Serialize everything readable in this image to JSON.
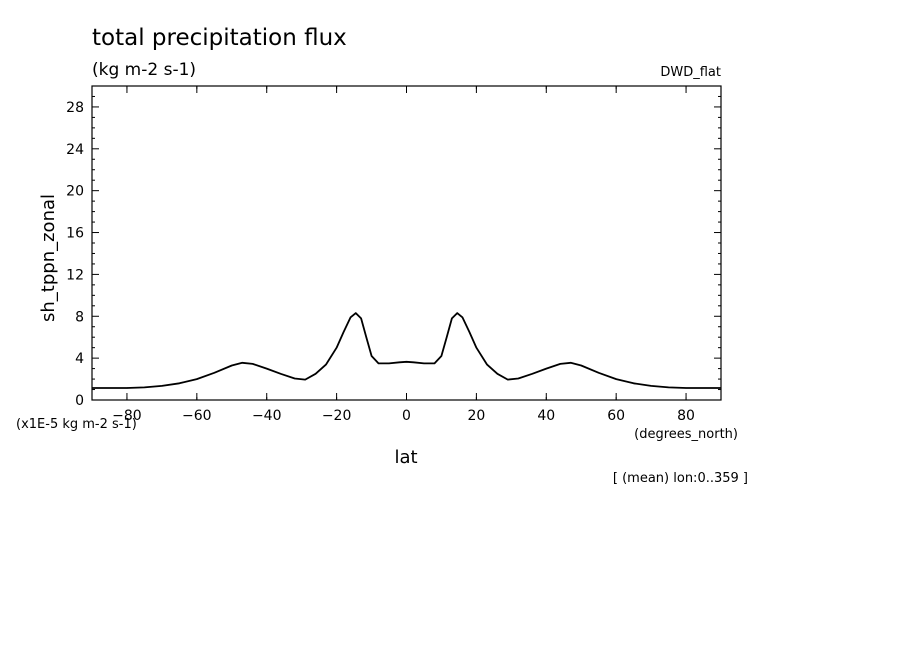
{
  "chart_data": {
    "type": "line",
    "title": "total precipitation flux",
    "units": "(kg m-2 s-1)",
    "model": "DWD_flat",
    "ylabel": "sh_tppn_zonal",
    "xlabel": "lat",
    "scale_note": "(x1E-5 kg m-2 s-1)",
    "x_units": "(degrees_north)",
    "footnote": "[ (mean) lon:0..359 ]",
    "xlim": [
      -90,
      90
    ],
    "ylim": [
      0,
      30
    ],
    "x_ticks": [
      -80,
      -60,
      -40,
      -20,
      0,
      20,
      40,
      60,
      80
    ],
    "y_ticks": [
      0,
      4,
      8,
      12,
      16,
      20,
      24,
      28
    ],
    "grid": false,
    "series": [
      {
        "x": [
          -90,
          -80,
          -75,
          -70,
          -65,
          -60,
          -55,
          -50,
          -47,
          -44,
          -40,
          -36,
          -32,
          -29,
          -26,
          -23,
          -20,
          -18,
          -16,
          -14.5,
          -13,
          -11.5,
          -10,
          -8,
          -5,
          -2,
          0,
          2,
          5,
          8,
          10,
          11.5,
          13,
          14.5,
          16,
          18,
          20,
          23,
          26,
          29,
          32,
          36,
          40,
          44,
          47,
          50,
          55,
          60,
          65,
          70,
          75,
          80,
          90
        ],
        "y": [
          1.15,
          1.15,
          1.2,
          1.35,
          1.6,
          2.0,
          2.6,
          3.3,
          3.55,
          3.45,
          3.0,
          2.5,
          2.05,
          1.95,
          2.5,
          3.4,
          5.0,
          6.5,
          7.9,
          8.3,
          7.8,
          6.0,
          4.2,
          3.5,
          3.5,
          3.6,
          3.65,
          3.6,
          3.5,
          3.5,
          4.2,
          6.0,
          7.8,
          8.3,
          7.9,
          6.5,
          5.0,
          3.4,
          2.5,
          1.95,
          2.05,
          2.5,
          3.0,
          3.45,
          3.55,
          3.3,
          2.6,
          2.0,
          1.6,
          1.35,
          1.2,
          1.15,
          1.15
        ]
      }
    ]
  }
}
